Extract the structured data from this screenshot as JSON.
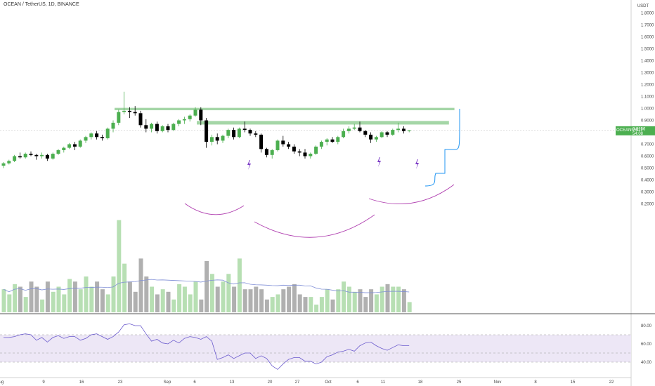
{
  "header": {
    "symbol_title": "OCEAN / TetherUS, 1D, BINANCE"
  },
  "price_axis": {
    "unit": "USDT",
    "ticks": [
      "1.8000",
      "1.7000",
      "1.6000",
      "1.5000",
      "1.4000",
      "1.3000",
      "1.2000",
      "1.1000",
      "1.0000",
      "0.9000",
      "0.8000",
      "0.7000",
      "0.6000",
      "0.5000",
      "0.4000",
      "0.3000",
      "0.2000"
    ],
    "last_label": {
      "symbol": "OCEANUSDT",
      "price": "0.8156",
      "countdown": "54:08"
    }
  },
  "rsi_axis": {
    "ticks": [
      "80.00",
      "60.00",
      "40.00"
    ]
  },
  "time_axis": {
    "labels": [
      "ug",
      "9",
      "16",
      "23",
      "Sep",
      "6",
      "13",
      "20",
      "27",
      "Oct",
      "6",
      "11",
      "18",
      "25",
      "Nov",
      "8",
      "15",
      "22"
    ]
  },
  "colors": {
    "up": "#4caf50",
    "down": "#000000",
    "zone": "#a5d6a7",
    "vol_up": "#b7dfb3",
    "vol_down": "#b0b0b0",
    "vol_ma": "#7f8ed6",
    "rsi": "#6a5acd",
    "rsi_band": "#ede7f6",
    "arc": "#b040b0",
    "projection": "#2196f3",
    "lightning": "#7e3fc7"
  },
  "chart_data": [
    {
      "type": "candlestick",
      "title": "OCEAN / TetherUS, 1D, BINANCE",
      "x_start": "Aug 2",
      "x_interval": "1 day",
      "ylim": [
        0.18,
        1.85
      ],
      "grid": false,
      "ohlc": [
        [
          0.52,
          0.55,
          0.5,
          0.54
        ],
        [
          0.54,
          0.57,
          0.53,
          0.56
        ],
        [
          0.56,
          0.61,
          0.55,
          0.6
        ],
        [
          0.6,
          0.63,
          0.58,
          0.59
        ],
        [
          0.59,
          0.63,
          0.58,
          0.62
        ],
        [
          0.62,
          0.64,
          0.6,
          0.61
        ],
        [
          0.61,
          0.62,
          0.57,
          0.6
        ],
        [
          0.6,
          0.63,
          0.58,
          0.61
        ],
        [
          0.61,
          0.62,
          0.56,
          0.58
        ],
        [
          0.58,
          0.63,
          0.57,
          0.62
        ],
        [
          0.62,
          0.66,
          0.61,
          0.65
        ],
        [
          0.65,
          0.68,
          0.63,
          0.67
        ],
        [
          0.67,
          0.71,
          0.66,
          0.7
        ],
        [
          0.7,
          0.72,
          0.65,
          0.68
        ],
        [
          0.68,
          0.74,
          0.67,
          0.73
        ],
        [
          0.73,
          0.77,
          0.71,
          0.76
        ],
        [
          0.76,
          0.8,
          0.74,
          0.79
        ],
        [
          0.79,
          0.81,
          0.74,
          0.76
        ],
        [
          0.76,
          0.78,
          0.73,
          0.75
        ],
        [
          0.75,
          0.84,
          0.74,
          0.83
        ],
        [
          0.83,
          0.9,
          0.8,
          0.88
        ],
        [
          0.88,
          0.99,
          0.86,
          0.97
        ],
        [
          0.97,
          1.14,
          0.95,
          0.98
        ],
        [
          0.98,
          1.01,
          0.92,
          0.97
        ],
        [
          0.97,
          1.02,
          0.94,
          0.96
        ],
        [
          0.96,
          0.98,
          0.84,
          0.86
        ],
        [
          0.86,
          0.91,
          0.8,
          0.83
        ],
        [
          0.83,
          0.88,
          0.8,
          0.87
        ],
        [
          0.87,
          0.89,
          0.79,
          0.81
        ],
        [
          0.81,
          0.86,
          0.8,
          0.85
        ],
        [
          0.85,
          0.87,
          0.8,
          0.82
        ],
        [
          0.82,
          0.88,
          0.81,
          0.87
        ],
        [
          0.87,
          0.91,
          0.85,
          0.9
        ],
        [
          0.9,
          0.93,
          0.87,
          0.91
        ],
        [
          0.91,
          0.95,
          0.89,
          0.94
        ],
        [
          0.94,
          1.01,
          0.93,
          0.99
        ],
        [
          0.99,
          1.01,
          0.86,
          0.9
        ],
        [
          0.9,
          0.92,
          0.67,
          0.72
        ],
        [
          0.72,
          0.78,
          0.69,
          0.76
        ],
        [
          0.76,
          0.79,
          0.7,
          0.73
        ],
        [
          0.73,
          0.78,
          0.71,
          0.77
        ],
        [
          0.77,
          0.83,
          0.75,
          0.82
        ],
        [
          0.82,
          0.84,
          0.74,
          0.76
        ],
        [
          0.76,
          0.84,
          0.75,
          0.83
        ],
        [
          0.83,
          0.89,
          0.8,
          0.82
        ],
        [
          0.82,
          0.83,
          0.77,
          0.79
        ],
        [
          0.79,
          0.81,
          0.76,
          0.78
        ],
        [
          0.78,
          0.79,
          0.63,
          0.66
        ],
        [
          0.66,
          0.67,
          0.59,
          0.61
        ],
        [
          0.61,
          0.66,
          0.58,
          0.65
        ],
        [
          0.65,
          0.74,
          0.64,
          0.73
        ],
        [
          0.73,
          0.77,
          0.68,
          0.7
        ],
        [
          0.7,
          0.72,
          0.66,
          0.68
        ],
        [
          0.68,
          0.7,
          0.62,
          0.64
        ],
        [
          0.64,
          0.66,
          0.6,
          0.63
        ],
        [
          0.63,
          0.66,
          0.58,
          0.6
        ],
        [
          0.6,
          0.63,
          0.58,
          0.62
        ],
        [
          0.62,
          0.69,
          0.61,
          0.68
        ],
        [
          0.68,
          0.73,
          0.66,
          0.72
        ],
        [
          0.72,
          0.75,
          0.69,
          0.74
        ],
        [
          0.74,
          0.76,
          0.71,
          0.72
        ],
        [
          0.72,
          0.77,
          0.7,
          0.76
        ],
        [
          0.76,
          0.83,
          0.75,
          0.81
        ],
        [
          0.81,
          0.85,
          0.79,
          0.83
        ],
        [
          0.83,
          0.87,
          0.82,
          0.84
        ],
        [
          0.84,
          0.89,
          0.8,
          0.81
        ],
        [
          0.81,
          0.82,
          0.76,
          0.78
        ],
        [
          0.78,
          0.8,
          0.71,
          0.74
        ],
        [
          0.74,
          0.77,
          0.72,
          0.76
        ],
        [
          0.76,
          0.81,
          0.75,
          0.8
        ],
        [
          0.8,
          0.81,
          0.76,
          0.78
        ],
        [
          0.78,
          0.83,
          0.77,
          0.82
        ],
        [
          0.82,
          0.88,
          0.8,
          0.83
        ],
        [
          0.83,
          0.85,
          0.79,
          0.81
        ],
        [
          0.81,
          0.82,
          0.8,
          0.8156
        ]
      ],
      "volume": [
        0.28,
        0.26,
        0.3,
        0.29,
        0.25,
        0.31,
        0.29,
        0.24,
        0.31,
        0.27,
        0.29,
        0.26,
        0.32,
        0.31,
        0.28,
        0.33,
        0.29,
        0.31,
        0.28,
        0.26,
        0.33,
        0.55,
        0.38,
        0.31,
        0.27,
        0.4,
        0.33,
        0.29,
        0.26,
        0.28,
        0.27,
        0.24,
        0.3,
        0.29,
        0.26,
        0.31,
        0.24,
        0.39,
        0.34,
        0.29,
        0.31,
        0.34,
        0.29,
        0.4,
        0.28,
        0.28,
        0.29,
        0.28,
        0.24,
        0.25,
        0.26,
        0.28,
        0.29,
        0.3,
        0.26,
        0.25,
        0.25,
        0.22,
        0.25,
        0.28,
        0.24,
        0.28,
        0.31,
        0.29,
        0.27,
        0.28,
        0.25,
        0.28,
        0.26,
        0.29,
        0.3,
        0.29,
        0.29,
        0.28,
        0.23
      ],
      "zones": [
        [
          0.985,
          1.005
        ],
        [
          0.865,
          0.895
        ]
      ],
      "rsi": {
        "ylim": [
          28,
          88
        ],
        "band": [
          40,
          70
        ],
        "midline": 50,
        "values": [
          67,
          67,
          68,
          70,
          71,
          70,
          64,
          67,
          62,
          67,
          69,
          66,
          68,
          68,
          64,
          66,
          70,
          71,
          68,
          65,
          68,
          73,
          81,
          82,
          80,
          80,
          71,
          63,
          65,
          61,
          60,
          64,
          61,
          66,
          68,
          67,
          65,
          68,
          63,
          43,
          45,
          48,
          44,
          47,
          50,
          50,
          44,
          47,
          44,
          36,
          32,
          38,
          43,
          45,
          45,
          41,
          41,
          38,
          40,
          46,
          48,
          51,
          52,
          54,
          52,
          58,
          61,
          62,
          58,
          55,
          53,
          56,
          59,
          58,
          58
        ]
      }
    }
  ]
}
